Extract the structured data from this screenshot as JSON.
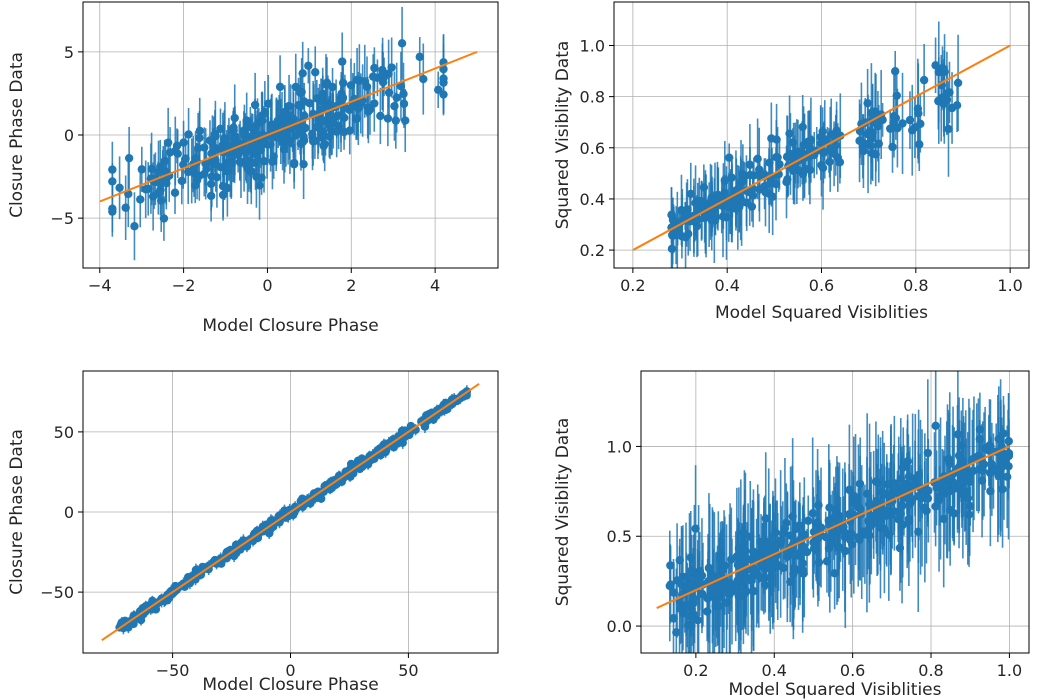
{
  "chart_data": [
    {
      "type": "scatter",
      "panel": "top-left",
      "xlabel": "Model Closure Phase",
      "ylabel": "Closure Phase Data",
      "xlim": [
        -4.4,
        5.5
      ],
      "ylim": [
        -8.0,
        8.0
      ],
      "xticks": [
        -4,
        -2,
        0,
        2,
        4
      ],
      "xtick_labels": [
        "−4",
        "−2",
        "0",
        "2",
        "4"
      ],
      "yticks": [
        -5,
        0,
        5
      ],
      "ytick_labels": [
        "−5",
        "0",
        "5"
      ],
      "grid": true,
      "series": [
        {
          "kind": "errorbar-points",
          "color": "#1f77b4",
          "x_range": [
            -3.7,
            4.2
          ],
          "slope": 1.0,
          "intercept": 0.0,
          "noise": 1.1,
          "errbar_min": 1.0,
          "errbar_max": 2.2,
          "count": 320,
          "center_weighted": true
        },
        {
          "kind": "line",
          "color": "#ff7f0e",
          "x": [
            -4,
            5
          ],
          "y": [
            -4,
            5
          ]
        }
      ]
    },
    {
      "type": "scatter",
      "panel": "top-right",
      "xlabel": "Model Squared Visiblities",
      "ylabel": "Squared Visiblity Data",
      "xlim": [
        0.16,
        1.04
      ],
      "ylim": [
        0.13,
        1.17
      ],
      "xticks": [
        0.2,
        0.4,
        0.6,
        0.8,
        1.0
      ],
      "xtick_labels": [
        "0.2",
        "0.4",
        "0.6",
        "0.8",
        "1.0"
      ],
      "yticks": [
        0.2,
        0.4,
        0.6,
        0.8,
        1.0
      ],
      "ytick_labels": [
        "0.2",
        "0.4",
        "0.6",
        "0.8",
        "1.0"
      ],
      "grid": true,
      "series": [
        {
          "kind": "errorbar-points",
          "color": "#1f77b4",
          "x_range": [
            0.28,
            0.64
          ],
          "slope": 1.0,
          "intercept": 0.0,
          "noise": 0.045,
          "errbar_min": 0.05,
          "errbar_max": 0.17,
          "count": 190,
          "center_weighted": false
        },
        {
          "kind": "errorbar-points",
          "color": "#1f77b4",
          "x_range": [
            0.68,
            0.89
          ],
          "slope": 0.95,
          "intercept": 0.0,
          "noise": 0.06,
          "errbar_min": 0.06,
          "errbar_max": 0.2,
          "count": 60,
          "center_weighted": false
        },
        {
          "kind": "line",
          "color": "#ff7f0e",
          "x": [
            0.2,
            1.0
          ],
          "y": [
            0.2,
            1.0
          ]
        }
      ]
    },
    {
      "type": "scatter",
      "panel": "bottom-left",
      "xlabel": "Model Closure Phase",
      "ylabel": "Closure Phase Data",
      "xlim": [
        -88,
        88
      ],
      "ylim": [
        -88,
        88
      ],
      "xticks": [
        -50,
        0,
        50
      ],
      "xtick_labels": [
        "−50",
        "0",
        "50"
      ],
      "yticks": [
        -50,
        0,
        50
      ],
      "ytick_labels": [
        "−50",
        "0",
        "50"
      ],
      "grid": true,
      "series": [
        {
          "kind": "errorbar-points",
          "color": "#1f77b4",
          "x_range": [
            -73,
            75
          ],
          "slope": 1.0,
          "intercept": 0.0,
          "noise": 1.6,
          "errbar_min": 2.0,
          "errbar_max": 4.0,
          "count": 420,
          "center_weighted": false
        },
        {
          "kind": "line",
          "color": "#ff7f0e",
          "x": [
            -80,
            80
          ],
          "y": [
            -80,
            80
          ]
        }
      ]
    },
    {
      "type": "scatter",
      "panel": "bottom-right",
      "xlabel": "Model Squared Visiblities",
      "ylabel": "Squared Visiblity Data",
      "xlim": [
        0.06,
        1.05
      ],
      "ylim": [
        -0.15,
        1.42
      ],
      "xticks": [
        0.2,
        0.4,
        0.6,
        0.8,
        1.0
      ],
      "xtick_labels": [
        "0.2",
        "0.4",
        "0.6",
        "0.8",
        "1.0"
      ],
      "yticks": [
        0.0,
        0.5,
        1.0
      ],
      "ytick_labels": [
        "0.0",
        "0.5",
        "1.0"
      ],
      "grid": true,
      "series": [
        {
          "kind": "errorbar-points",
          "color": "#1f77b4",
          "x_range": [
            0.13,
            1.0
          ],
          "slope": 0.95,
          "intercept": 0.0,
          "noise": 0.09,
          "errbar_min": 0.1,
          "errbar_max": 0.45,
          "count": 430,
          "center_weighted": false
        },
        {
          "kind": "line",
          "color": "#ff7f0e",
          "x": [
            0.1,
            1.0
          ],
          "y": [
            0.1,
            1.0
          ]
        }
      ]
    }
  ]
}
